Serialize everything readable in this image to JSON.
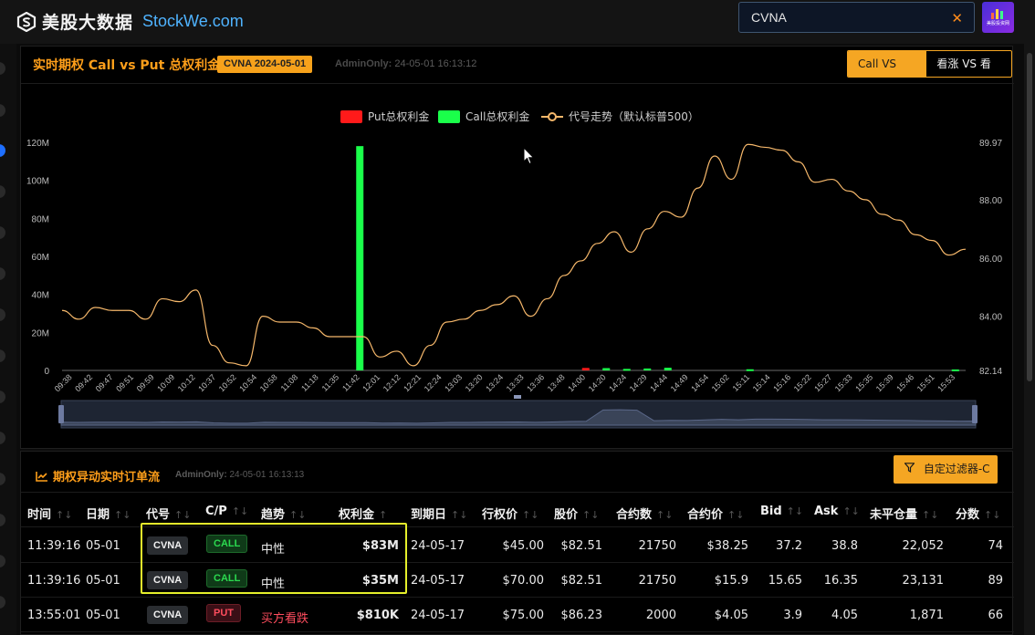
{
  "brand": {
    "name_cn": "美股大数据",
    "name_en": "StockWe.com"
  },
  "search": {
    "value": "CVNA",
    "clear": "✕"
  },
  "avatar": {
    "label": "美股投资网"
  },
  "panel": {
    "title": "实时期权 Call vs Put 总权利金",
    "ticker_badge": "CVNA 2024-05-01",
    "admin_label": "AdminOnly:",
    "admin_time": "24-05-01 16:13:12",
    "toggle": [
      "Call VS Put",
      "看涨 VS 看跌"
    ],
    "toggle_active": 0
  },
  "chart_data": {
    "type": "bar+line",
    "legend": [
      {
        "name": "Put总权利金",
        "color": "#ff1a1a",
        "shape": "rect"
      },
      {
        "name": "Call总权利金",
        "color": "#1aff4a",
        "shape": "rect"
      },
      {
        "name": "代号走势（默认标普500）",
        "color": "#f6b86b",
        "shape": "line"
      }
    ],
    "y_left": {
      "ticks": [
        "0",
        "20M",
        "40M",
        "60M",
        "80M",
        "100M",
        "120M"
      ],
      "min": 0,
      "max": 120
    },
    "y_right": {
      "ticks": [
        "82.14",
        "84.00",
        "86.00",
        "88.00",
        "89.97"
      ],
      "min": 82.14,
      "max": 89.97
    },
    "x_labels": [
      "09:38",
      "09:42",
      "09:47",
      "09:51",
      "09:59",
      "10:09",
      "10:12",
      "10:37",
      "10:52",
      "10:54",
      "10:58",
      "11:08",
      "11:18",
      "11:35",
      "11:42",
      "12:01",
      "12:12",
      "12:21",
      "12:24",
      "13:03",
      "13:20",
      "13:24",
      "13:33",
      "13:36",
      "13:48",
      "14:00",
      "14:20",
      "14:24",
      "14:29",
      "14:44",
      "14:49",
      "14:54",
      "15:02",
      "15:11",
      "15:14",
      "15:16",
      "15:22",
      "15:27",
      "15:33",
      "15:35",
      "15:39",
      "15:46",
      "15:51",
      "15:53"
    ],
    "call_bars": [
      {
        "x": "11:42",
        "value": 118
      },
      {
        "x": "14:20",
        "value": 1.2
      },
      {
        "x": "14:24",
        "value": 0.8
      },
      {
        "x": "14:29",
        "value": 1.0
      },
      {
        "x": "14:44",
        "value": 1.4
      },
      {
        "x": "15:11",
        "value": 0.6
      },
      {
        "x": "15:53",
        "value": 0.5
      }
    ],
    "put_bars": [
      {
        "x": "14:00",
        "value": 1.3
      }
    ],
    "price_line": [
      84.2,
      83.9,
      84.3,
      84.2,
      84.2,
      83.9,
      84.6,
      84.5,
      84.9,
      83.0,
      82.4,
      82.3,
      84.0,
      83.8,
      83.8,
      83.6,
      83.3,
      83.3,
      83.3,
      82.6,
      82.8,
      82.3,
      83.0,
      83.8,
      83.9,
      84.2,
      84.4,
      84.7,
      84.0,
      84.6,
      85.4,
      85.9,
      86.5,
      86.9,
      86.2,
      87.0,
      87.6,
      87.4,
      88.4,
      89.5,
      88.7,
      89.9,
      89.8,
      89.7,
      89.3,
      88.6,
      88.7,
      88.3,
      88.0,
      87.5,
      87.3,
      86.8,
      86.6,
      86.1,
      86.3
    ]
  },
  "orders": {
    "title": "期权异动实时订单流",
    "admin_label": "AdminOnly:",
    "admin_time": "24-05-01 16:13:13",
    "filter_label": "自定过滤器-C",
    "columns": [
      "时间",
      "日期",
      "代号",
      "C/P",
      "趋势",
      "权利金",
      "到期日",
      "行权价",
      "股价",
      "合约数",
      "合约价",
      "Bid",
      "Ask",
      "未平仓量",
      "分数"
    ],
    "rows": [
      {
        "time": "11:39:16",
        "date": "05-01",
        "ticker": "CVNA",
        "cp": "CALL",
        "trend": "中性",
        "premium": "$83M",
        "expiry": "24-05-17",
        "strike": "$45.00",
        "price": "$82.51",
        "contracts": "21750",
        "contract_price": "$38.25",
        "bid": "37.2",
        "ask": "38.8",
        "oi": "22,052",
        "score": "74"
      },
      {
        "time": "11:39:16",
        "date": "05-01",
        "ticker": "CVNA",
        "cp": "CALL",
        "trend": "中性",
        "premium": "$35M",
        "expiry": "24-05-17",
        "strike": "$70.00",
        "price": "$82.51",
        "contracts": "21750",
        "contract_price": "$15.9",
        "bid": "15.65",
        "ask": "16.35",
        "oi": "23,131",
        "score": "89"
      },
      {
        "time": "13:55:01",
        "date": "05-01",
        "ticker": "CVNA",
        "cp": "PUT",
        "trend": "买方看跌",
        "premium": "$810K",
        "expiry": "24-05-17",
        "strike": "$75.00",
        "price": "$86.23",
        "contracts": "2000",
        "contract_price": "$4.05",
        "bid": "3.9",
        "ask": "4.05",
        "oi": "1,871",
        "score": "66"
      }
    ]
  }
}
